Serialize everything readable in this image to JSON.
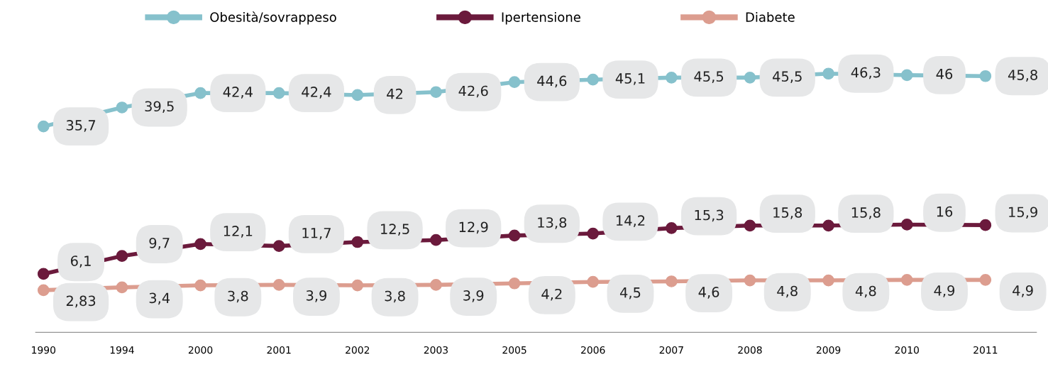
{
  "chart_data": {
    "type": "line",
    "categories": [
      "1990",
      "1994",
      "2000",
      "2001",
      "2002",
      "2003",
      "2005",
      "2006",
      "2007",
      "2008",
      "2009",
      "2010",
      "2011"
    ],
    "series": [
      {
        "name": "Obesità/sovrappeso",
        "color": "#86c1cc",
        "values": [
          35.7,
          39.5,
          42.4,
          42.4,
          42,
          42.6,
          44.6,
          45.1,
          45.5,
          45.5,
          46.3,
          46,
          45.8
        ],
        "value_labels": [
          "35,7",
          "39,5",
          "42,4",
          "42,4",
          "42",
          "42,6",
          "44,6",
          "45,1",
          "45,5",
          "45,5",
          "46,3",
          "46",
          "45,8"
        ]
      },
      {
        "name": "Ipertensione",
        "color": "#6b1a3c",
        "values": [
          6.1,
          9.7,
          12.1,
          11.7,
          12.5,
          12.9,
          13.8,
          14.2,
          15.3,
          15.8,
          15.8,
          16,
          15.9
        ],
        "value_labels": [
          "6,1",
          "9,7",
          "12,1",
          "11,7",
          "12,5",
          "12,9",
          "13,8",
          "14,2",
          "15,3",
          "15,8",
          "15,8",
          "16",
          "15,9"
        ]
      },
      {
        "name": "Diabete",
        "color": "#dc9d8f",
        "values": [
          2.83,
          3.4,
          3.8,
          3.9,
          3.8,
          3.9,
          4.2,
          4.5,
          4.6,
          4.8,
          4.8,
          4.9,
          4.9
        ],
        "value_labels": [
          "2,83",
          "3,4",
          "3,8",
          "3,9",
          "3,8",
          "3,9",
          "4,2",
          "4,5",
          "4,6",
          "4,8",
          "4,8",
          "4,9",
          "4,9"
        ]
      }
    ],
    "marker": "circle",
    "line_style": "solid",
    "legend": "top",
    "tick_labels": "x"
  }
}
